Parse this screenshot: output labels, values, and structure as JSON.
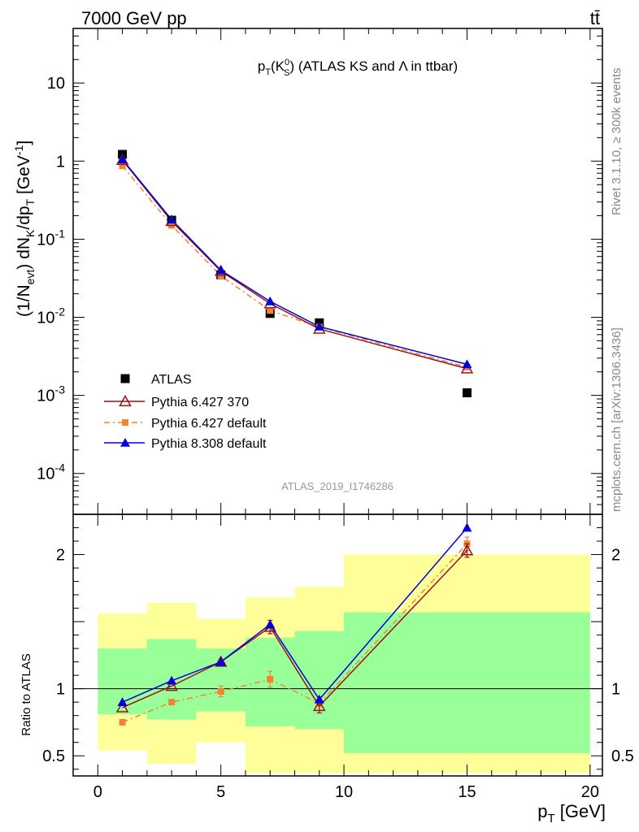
{
  "header": {
    "energy_label": "7000 GeV pp",
    "process_label": "tt̄"
  },
  "side": {
    "rivet_label": "Rivet 3.1.10, ≥ 300k events",
    "mcplots_label": "mcplots.cern.ch [arXiv:1306.3436]"
  },
  "chart_data": [
    {
      "type": "scatter",
      "panel": "main",
      "title": "pT(K0S) (ATLAS KS and Λ in ttbar)",
      "analysis_label": "ATLAS_2019_I1746286",
      "xlabel": "pT [GeV]",
      "ylabel": "(1/Nevt) dNK/dpT [GeV⁻¹]",
      "xlim": [
        -1,
        20.5
      ],
      "ylim": [
        3e-05,
        50
      ],
      "yscale": "log",
      "y_ticks": [
        {
          "value": 0.0001,
          "base": "10",
          "exp": "-4"
        },
        {
          "value": 0.001,
          "base": "10",
          "exp": "-3"
        },
        {
          "value": 0.01,
          "base": "10",
          "exp": "-2"
        },
        {
          "value": 0.1,
          "base": "10",
          "exp": "-1"
        },
        {
          "value": 1,
          "base": "1",
          "exp": ""
        },
        {
          "value": 10,
          "base": "10",
          "exp": ""
        }
      ],
      "legend_placement": "lower-left",
      "series": [
        {
          "name": "ATLAS",
          "color": "#000000",
          "marker": "square",
          "x": [
            1,
            3,
            5,
            7,
            9,
            15
          ],
          "y": [
            1.22,
            0.175,
            0.035,
            0.0112,
            0.0085,
            0.00108
          ]
        },
        {
          "name": "Pythia 6.427 370",
          "color": "#a01010",
          "marker": "open-triangle",
          "line": "solid",
          "x": [
            1,
            3,
            5,
            7,
            9,
            15
          ],
          "y": [
            1.03,
            0.17,
            0.039,
            0.015,
            0.0071,
            0.0022
          ]
        },
        {
          "name": "Pythia 6.427 default",
          "color": "#f58231",
          "marker": "small-square",
          "line": "dashdot",
          "x": [
            1,
            3,
            5,
            7,
            9,
            15
          ],
          "y": [
            0.87,
            0.15,
            0.034,
            0.0122,
            0.0075,
            0.0023
          ]
        },
        {
          "name": "Pythia 8.308 default",
          "color": "#0000dd",
          "marker": "triangle",
          "line": "solid",
          "x": [
            1,
            3,
            5,
            7,
            9,
            15
          ],
          "y": [
            1.05,
            0.178,
            0.04,
            0.016,
            0.0076,
            0.0025
          ]
        }
      ]
    },
    {
      "type": "line",
      "panel": "ratio",
      "xlabel": "pT [GeV]",
      "ylabel": "Ratio to ATLAS",
      "xlim": [
        -1,
        20.5
      ],
      "ylim": [
        0.35,
        2.3
      ],
      "x_ticks": [
        0,
        5,
        10,
        15,
        20
      ],
      "y_ticks": [
        0.5,
        1,
        2
      ],
      "bands": {
        "edges": [
          0,
          2,
          4,
          6,
          8,
          10,
          20
        ],
        "yellow_low": [
          0.54,
          0.44,
          0.6,
          0.37,
          0.37,
          0.37
        ],
        "yellow_high": [
          1.56,
          1.64,
          1.52,
          1.68,
          1.76,
          2.0
        ],
        "green_low": [
          0.81,
          0.77,
          0.83,
          0.72,
          0.7,
          0.52
        ],
        "green_high": [
          1.3,
          1.37,
          1.3,
          1.38,
          1.43,
          1.57
        ]
      },
      "series": [
        {
          "name": "Pythia 6.427 370",
          "color": "#a01010",
          "x": [
            1,
            3,
            5,
            7,
            9,
            15
          ],
          "y": [
            0.86,
            1.02,
            1.2,
            1.46,
            0.87,
            2.03
          ],
          "err": [
            0,
            0,
            0,
            0.05,
            0.05,
            0.05
          ]
        },
        {
          "name": "Pythia 6.427 default",
          "color": "#f58231",
          "x": [
            1,
            3,
            5,
            7,
            9,
            15
          ],
          "y": [
            0.75,
            0.9,
            0.98,
            1.07,
            0.89,
            2.08
          ],
          "err": [
            0,
            0,
            0.04,
            0.06,
            0.05,
            0.05
          ]
        },
        {
          "name": "Pythia 8.308 default",
          "color": "#0000dd",
          "x": [
            1,
            3,
            5,
            7,
            9,
            15
          ],
          "y": [
            0.9,
            1.06,
            1.2,
            1.48,
            0.92,
            2.2
          ],
          "err": [
            0,
            0,
            0,
            0,
            0,
            0
          ]
        }
      ]
    }
  ]
}
